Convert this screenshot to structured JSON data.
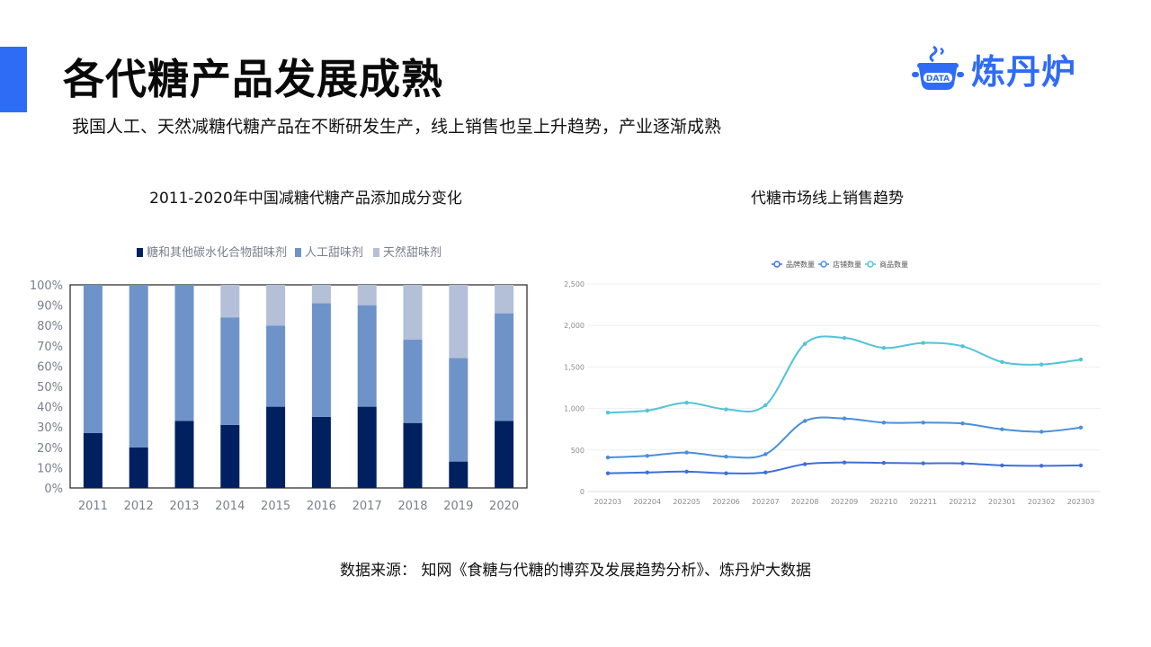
{
  "header": {
    "title": "各代糖产品发展成熟",
    "subtitle": "我国人工、天然减糖代糖产品在不断研发生产，线上销售也呈上升趋势，产业逐渐成熟",
    "logo_badge": "DATA",
    "logo_text": "炼丹炉",
    "accent_color": "#2f6cf6"
  },
  "footer": {
    "source": "数据来源： 知网《食糖与代糖的博弈及发展趋势分析》、炼丹炉大数据"
  },
  "chart_data": [
    {
      "type": "bar",
      "stacked": true,
      "title": "2011-2020年中国减糖代糖产品添加成分变化",
      "categories": [
        "2011",
        "2012",
        "2013",
        "2014",
        "2015",
        "2016",
        "2017",
        "2018",
        "2019",
        "2020"
      ],
      "y_ticks": [
        "0%",
        "10%",
        "20%",
        "30%",
        "40%",
        "50%",
        "60%",
        "70%",
        "80%",
        "90%",
        "100%"
      ],
      "ylim": [
        0,
        100
      ],
      "legend_position": "top",
      "series": [
        {
          "name": "糖和其他碳水化合物甜味剂",
          "color": "#002060",
          "values": [
            27,
            20,
            33,
            31,
            40,
            35,
            40,
            32,
            13,
            33
          ]
        },
        {
          "name": "人工甜味剂",
          "color": "#6e93c9",
          "values": [
            73,
            80,
            67,
            53,
            40,
            56,
            50,
            41,
            51,
            53
          ]
        },
        {
          "name": "天然甜味剂",
          "color": "#b3c0d8",
          "values": [
            0,
            0,
            0,
            16,
            20,
            9,
            10,
            27,
            36,
            14
          ]
        }
      ]
    },
    {
      "type": "line",
      "title": "代糖市场线上销售趋势",
      "categories": [
        "202203",
        "202204",
        "202205",
        "202206",
        "202207",
        "202208",
        "202209",
        "202210",
        "202211",
        "202212",
        "202301",
        "202302",
        "202303"
      ],
      "y_ticks": [
        "0",
        "500",
        "1,000",
        "1,500",
        "2,000",
        "2,500"
      ],
      "ylim": [
        0,
        2500
      ],
      "grid": true,
      "legend_position": "top",
      "series": [
        {
          "name": "品牌数量",
          "color": "#3f6fd6",
          "values": [
            220,
            230,
            240,
            220,
            230,
            330,
            350,
            345,
            340,
            340,
            315,
            310,
            315
          ]
        },
        {
          "name": "店铺数量",
          "color": "#4a8fd8",
          "values": [
            410,
            430,
            470,
            420,
            450,
            850,
            880,
            830,
            830,
            820,
            750,
            720,
            770
          ]
        },
        {
          "name": "商品数量",
          "color": "#52c3d8",
          "values": [
            950,
            975,
            1070,
            990,
            1040,
            1780,
            1850,
            1730,
            1790,
            1750,
            1560,
            1530,
            1590
          ]
        }
      ]
    }
  ]
}
